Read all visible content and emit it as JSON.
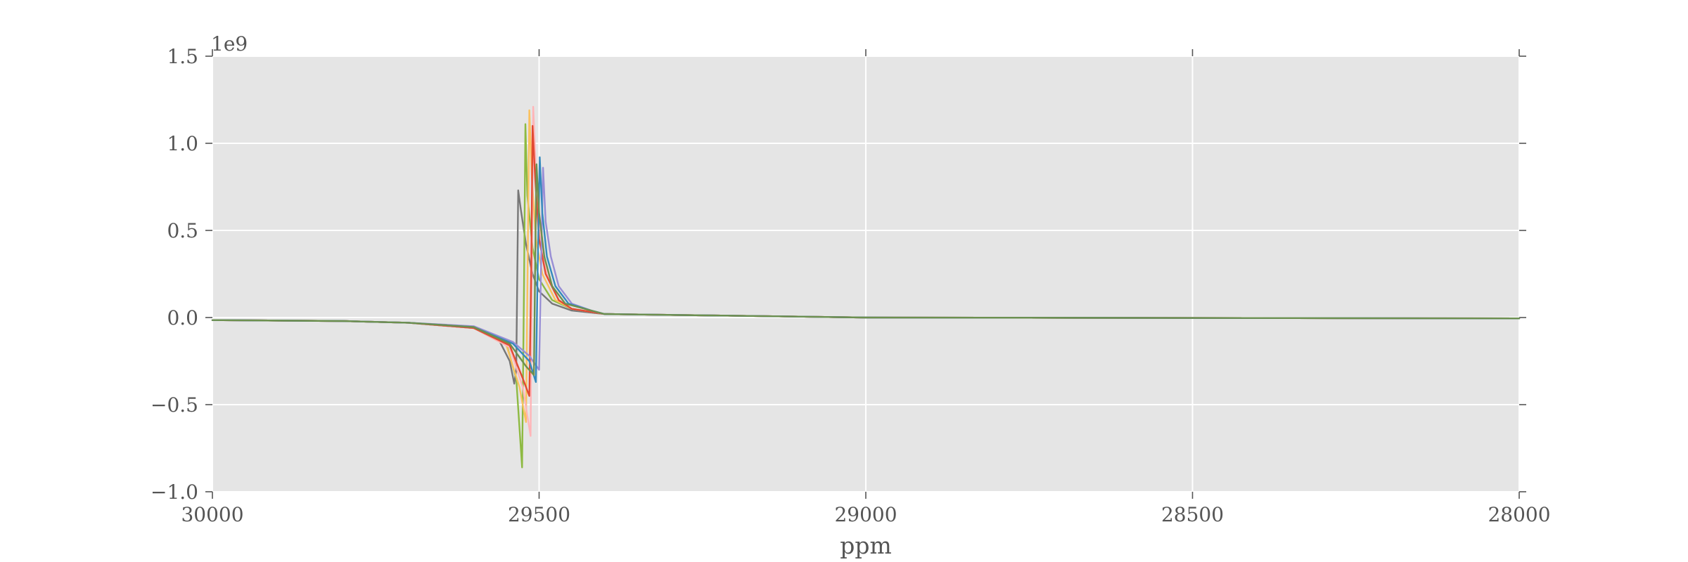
{
  "chart_data": {
    "type": "line",
    "title": "",
    "xlabel": "ppm",
    "ylabel": "",
    "y_offset_label": "1e9",
    "xlim": [
      30000,
      28000
    ],
    "ylim": [
      -1.0,
      1.5
    ],
    "x_inverted": true,
    "grid": true,
    "background": "#e5e5e5",
    "x_ticks": [
      30000,
      29500,
      29000,
      28500,
      28000
    ],
    "x_tick_labels": [
      "30000",
      "29500",
      "29000",
      "28500",
      "28000"
    ],
    "y_ticks": [
      -1.0,
      -0.5,
      0.0,
      0.5,
      1.0,
      1.5
    ],
    "y_tick_labels": [
      "−1.0",
      "−0.5",
      "0.0",
      "0.5",
      "1.0",
      "1.5"
    ],
    "series": [
      {
        "color": "#777777",
        "points": [
          [
            30000,
            -0.015
          ],
          [
            29800,
            -0.02
          ],
          [
            29700,
            -0.03
          ],
          [
            29600,
            -0.06
          ],
          [
            29560,
            -0.14
          ],
          [
            29545,
            -0.25
          ],
          [
            29538,
            -0.38
          ],
          [
            29535,
            -0.3
          ],
          [
            29532,
            0.73
          ],
          [
            29528,
            0.62
          ],
          [
            29520,
            0.42
          ],
          [
            29510,
            0.25
          ],
          [
            29500,
            0.15
          ],
          [
            29480,
            0.08
          ],
          [
            29450,
            0.04
          ],
          [
            29400,
            0.02
          ],
          [
            29000,
            0.0
          ],
          [
            28000,
            -0.005
          ]
        ]
      },
      {
        "color": "#8eba42",
        "points": [
          [
            30000,
            -0.015
          ],
          [
            29800,
            -0.02
          ],
          [
            29700,
            -0.03
          ],
          [
            29600,
            -0.06
          ],
          [
            29550,
            -0.15
          ],
          [
            29535,
            -0.35
          ],
          [
            29526,
            -0.86
          ],
          [
            29523,
            0.2
          ],
          [
            29521,
            1.11
          ],
          [
            29518,
            0.7
          ],
          [
            29510,
            0.4
          ],
          [
            29500,
            0.22
          ],
          [
            29480,
            0.1
          ],
          [
            29450,
            0.05
          ],
          [
            29400,
            0.02
          ],
          [
            29000,
            0.0
          ],
          [
            28000,
            -0.005
          ]
        ]
      },
      {
        "color": "#fbc15e",
        "points": [
          [
            30000,
            -0.015
          ],
          [
            29800,
            -0.02
          ],
          [
            29700,
            -0.03
          ],
          [
            29600,
            -0.06
          ],
          [
            29550,
            -0.16
          ],
          [
            29530,
            -0.4
          ],
          [
            29520,
            -0.6
          ],
          [
            29517,
            0.5
          ],
          [
            29515,
            1.19
          ],
          [
            29511,
            0.8
          ],
          [
            29505,
            0.45
          ],
          [
            29495,
            0.25
          ],
          [
            29475,
            0.1
          ],
          [
            29450,
            0.05
          ],
          [
            29400,
            0.02
          ],
          [
            29000,
            0.0
          ],
          [
            28000,
            -0.005
          ]
        ]
      },
      {
        "color": "#ffb5b8",
        "points": [
          [
            30000,
            -0.015
          ],
          [
            29800,
            -0.02
          ],
          [
            29700,
            -0.03
          ],
          [
            29600,
            -0.06
          ],
          [
            29545,
            -0.17
          ],
          [
            29525,
            -0.4
          ],
          [
            29513,
            -0.68
          ],
          [
            29511,
            0.4
          ],
          [
            29509,
            1.21
          ],
          [
            29505,
            0.85
          ],
          [
            29498,
            0.45
          ],
          [
            29488,
            0.25
          ],
          [
            29470,
            0.1
          ],
          [
            29450,
            0.05
          ],
          [
            29400,
            0.02
          ],
          [
            29000,
            0.0
          ],
          [
            28000,
            -0.005
          ]
        ]
      },
      {
        "color": "#e24a33",
        "points": [
          [
            30000,
            -0.015
          ],
          [
            29800,
            -0.02
          ],
          [
            29700,
            -0.03
          ],
          [
            29600,
            -0.06
          ],
          [
            29545,
            -0.16
          ],
          [
            29525,
            -0.35
          ],
          [
            29515,
            -0.45
          ],
          [
            29512,
            0.3
          ],
          [
            29510,
            1.1
          ],
          [
            29506,
            0.8
          ],
          [
            29500,
            0.45
          ],
          [
            29490,
            0.25
          ],
          [
            29470,
            0.1
          ],
          [
            29450,
            0.05
          ],
          [
            29400,
            0.02
          ],
          [
            29000,
            0.0
          ],
          [
            28000,
            -0.005
          ]
        ]
      },
      {
        "color": "#988ed5",
        "points": [
          [
            30000,
            -0.015
          ],
          [
            29800,
            -0.02
          ],
          [
            29700,
            -0.03
          ],
          [
            29600,
            -0.05
          ],
          [
            29540,
            -0.14
          ],
          [
            29515,
            -0.22
          ],
          [
            29500,
            -0.3
          ],
          [
            29497,
            0.3
          ],
          [
            29494,
            0.86
          ],
          [
            29490,
            0.55
          ],
          [
            29482,
            0.35
          ],
          [
            29470,
            0.18
          ],
          [
            29450,
            0.08
          ],
          [
            29420,
            0.04
          ],
          [
            29400,
            0.02
          ],
          [
            29000,
            0.0
          ],
          [
            28000,
            -0.005
          ]
        ]
      },
      {
        "color": "#348abd",
        "points": [
          [
            30000,
            -0.015
          ],
          [
            29800,
            -0.02
          ],
          [
            29700,
            -0.03
          ],
          [
            29600,
            -0.055
          ],
          [
            29540,
            -0.15
          ],
          [
            29515,
            -0.25
          ],
          [
            29505,
            -0.37
          ],
          [
            29502,
            0.3
          ],
          [
            29499,
            0.92
          ],
          [
            29495,
            0.6
          ],
          [
            29488,
            0.35
          ],
          [
            29475,
            0.18
          ],
          [
            29455,
            0.08
          ],
          [
            29420,
            0.04
          ],
          [
            29400,
            0.02
          ],
          [
            29000,
            0.0
          ],
          [
            28000,
            -0.005
          ]
        ]
      },
      {
        "color": "#6d904f",
        "points": [
          [
            30000,
            -0.015
          ],
          [
            29800,
            -0.02
          ],
          [
            29700,
            -0.03
          ],
          [
            29600,
            -0.055
          ],
          [
            29545,
            -0.15
          ],
          [
            29520,
            -0.28
          ],
          [
            29508,
            -0.33
          ],
          [
            29506,
            0.3
          ],
          [
            29504,
            0.88
          ],
          [
            29500,
            0.6
          ],
          [
            29492,
            0.35
          ],
          [
            29480,
            0.18
          ],
          [
            29460,
            0.08
          ],
          [
            29420,
            0.04
          ],
          [
            29400,
            0.02
          ],
          [
            29000,
            0.0
          ],
          [
            28000,
            -0.005
          ]
        ]
      }
    ]
  }
}
